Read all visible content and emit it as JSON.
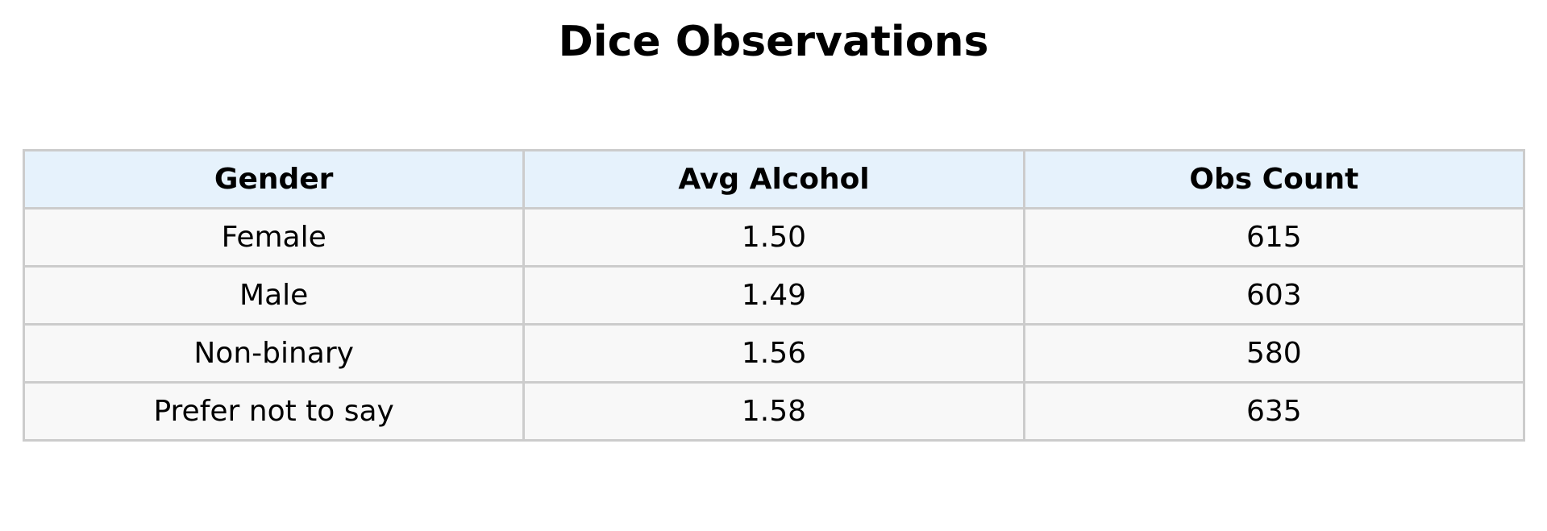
{
  "chart_data": {
    "type": "table",
    "title": "Dice Observations",
    "columns": [
      "Gender",
      "Avg Alcohol",
      "Obs Count"
    ],
    "rows": [
      [
        "Female",
        "1.50",
        "615"
      ],
      [
        "Male",
        "1.49",
        "603"
      ],
      [
        "Non-binary",
        "1.56",
        "580"
      ],
      [
        "Prefer not to say",
        "1.58",
        "635"
      ]
    ],
    "colors": {
      "header_background": "#e6f2fc",
      "cell_background": "#f8f8f8",
      "border": "#cccccc"
    }
  }
}
